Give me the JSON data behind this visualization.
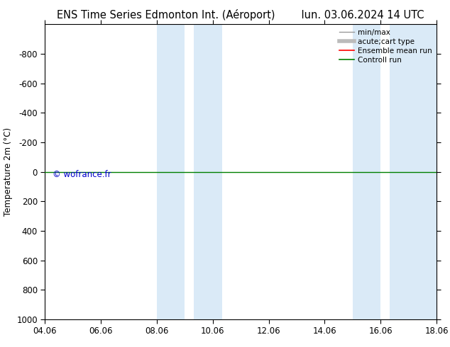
{
  "title_left": "ENS Time Series Edmonton Int. (Aéroport)",
  "title_right": "lun. 03.06.2024 14 UTC",
  "ylabel": "Temperature 2m (°C)",
  "watermark": "© wofrance.fr",
  "watermark_color": "#0000cc",
  "xtick_labels": [
    "04.06",
    "06.06",
    "08.06",
    "10.06",
    "12.06",
    "14.06",
    "16.06",
    "18.06"
  ],
  "xtick_positions": [
    0,
    2,
    4,
    6,
    8,
    10,
    12,
    14
  ],
  "xlim": [
    0,
    14
  ],
  "ylim": [
    -1000,
    1000
  ],
  "ytick_positions": [
    -800,
    -600,
    -400,
    -200,
    0,
    200,
    400,
    600,
    800,
    1000
  ],
  "ytick_labels": [
    "-800",
    "-600",
    "-400",
    "-200",
    "0",
    "200",
    "400",
    "600",
    "800",
    "1000"
  ],
  "background_color": "#ffffff",
  "plot_bg_color": "#ffffff",
  "shade_regions": [
    {
      "x_start": 4.0,
      "x_end": 5.0,
      "color": "#daeaf7"
    },
    {
      "x_start": 5.33,
      "x_end": 6.33,
      "color": "#daeaf7"
    },
    {
      "x_start": 11.0,
      "x_end": 12.0,
      "color": "#daeaf7"
    },
    {
      "x_start": 12.33,
      "x_end": 14.0,
      "color": "#daeaf7"
    }
  ],
  "green_line_y": 0,
  "green_line_color": "#008000",
  "legend_entries": [
    {
      "label": "min/max",
      "color": "#999999",
      "lw": 1.0
    },
    {
      "label": "acute;cart type",
      "color": "#bbbbbb",
      "lw": 4.0
    },
    {
      "label": "Ensemble mean run",
      "color": "#ff0000",
      "lw": 1.2
    },
    {
      "label": "Controll run",
      "color": "#008000",
      "lw": 1.2
    }
  ],
  "title_fontsize": 10.5,
  "axis_fontsize": 8.5,
  "legend_fontsize": 7.5,
  "ylabel_fontsize": 8.5
}
